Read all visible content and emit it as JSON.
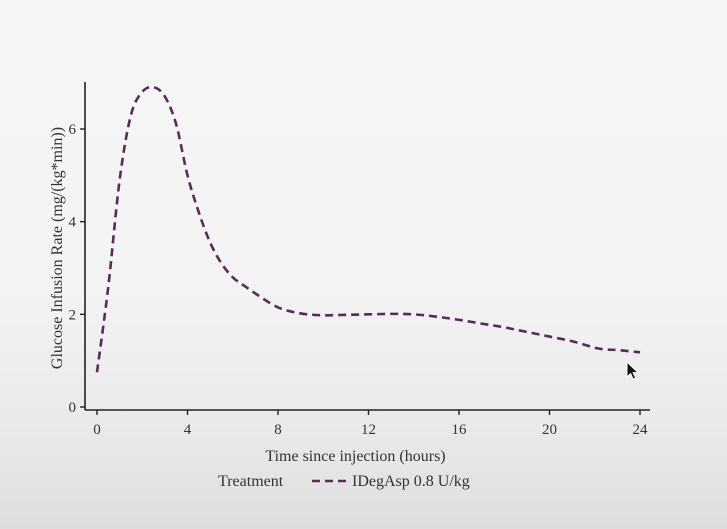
{
  "chart_data": {
    "type": "line",
    "title": "",
    "xlabel": "Time since injection (hours)",
    "ylabel": "Glucose Infusion Rate (mg/(kg*min))",
    "xlim": [
      0,
      24
    ],
    "ylim": [
      0,
      7
    ],
    "x_ticks": [
      0,
      4,
      8,
      12,
      16,
      20,
      24
    ],
    "y_ticks": [
      0,
      2,
      4,
      6
    ],
    "grid": false,
    "legend": {
      "placement": "bottom",
      "title": "Treatment",
      "entries": [
        "IDegAsp 0.8 U/kg"
      ]
    },
    "series": [
      {
        "name": "IDegAsp 0.8 U/kg",
        "color": "#5a2a59",
        "line_style": "dashed",
        "x": [
          0,
          0.5,
          1,
          1.5,
          2,
          2.5,
          3,
          3.5,
          4,
          4.5,
          5,
          5.5,
          6,
          6.5,
          7,
          8,
          9,
          10,
          11,
          12,
          13,
          14,
          15,
          16,
          17,
          18,
          19,
          20,
          21,
          22,
          22.5,
          23,
          24
        ],
        "y": [
          0.75,
          2.6,
          4.9,
          6.3,
          6.8,
          6.9,
          6.7,
          6.1,
          5.0,
          4.2,
          3.55,
          3.1,
          2.8,
          2.62,
          2.45,
          2.15,
          2.02,
          1.98,
          1.99,
          2.0,
          2.01,
          2.0,
          1.95,
          1.88,
          1.8,
          1.72,
          1.62,
          1.52,
          1.42,
          1.28,
          1.24,
          1.23,
          1.18
        ]
      }
    ]
  }
}
